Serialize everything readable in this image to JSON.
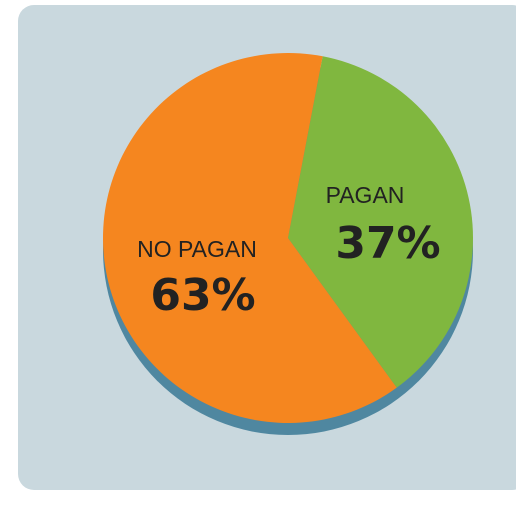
{
  "chart_data": {
    "type": "pie",
    "categories": [
      "PAGAN",
      "NO PAGAN"
    ],
    "values": [
      37,
      63
    ],
    "value_labels": [
      "37%",
      "63%"
    ],
    "colors": [
      "#80b73f",
      "#f5861f"
    ]
  }
}
